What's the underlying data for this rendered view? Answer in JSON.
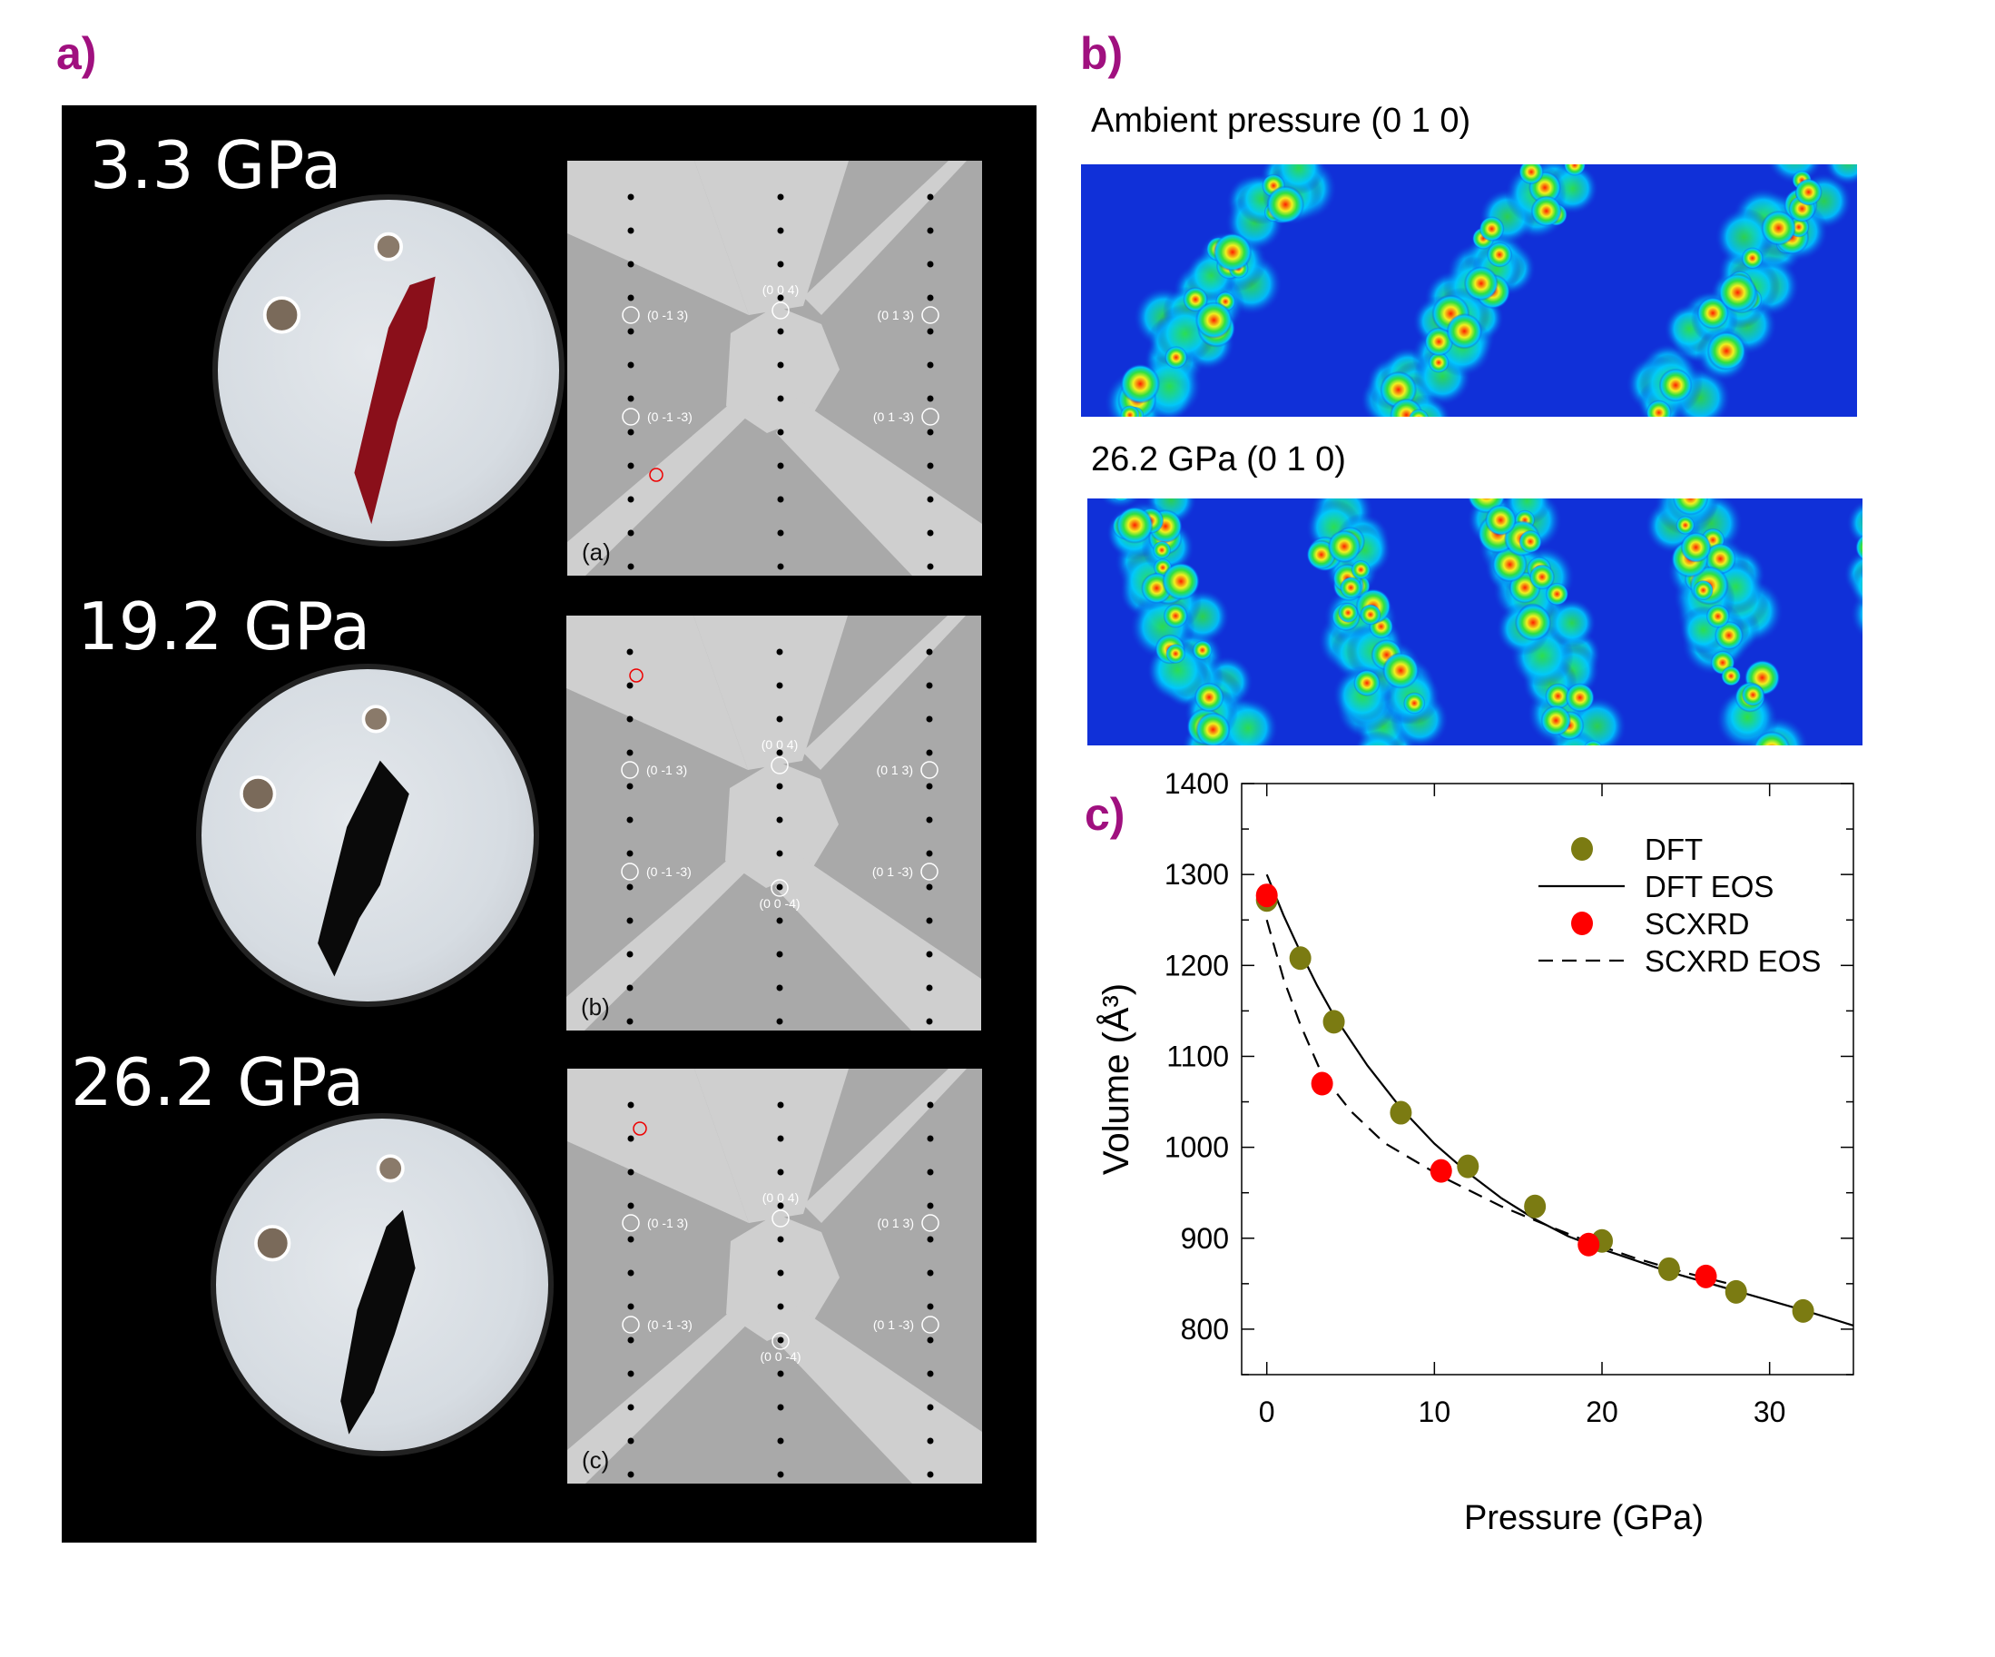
{
  "panels": {
    "a": {
      "label": "a)",
      "rows": [
        {
          "pressure": "3.3 GPa",
          "diffraction_label": "(a)",
          "reflections": [
            "(0 0 4)",
            "(0 -1 3)",
            "(0 1 3)",
            "(0 -1 -3)",
            "(0 1 -3)"
          ],
          "crystal_color": "#8a0f1a"
        },
        {
          "pressure": "19.2 GPa",
          "diffraction_label": "(b)",
          "reflections": [
            "(0 0 4)",
            "(0 -1 3)",
            "(0 1 3)",
            "(0 -1 -3)",
            "(0 1 -3)",
            "(0 0 -4)"
          ],
          "crystal_color": "#0a0a0a"
        },
        {
          "pressure": "26.2 GPa",
          "diffraction_label": "(c)",
          "reflections": [
            "(0 0 4)",
            "(0 -1 3)",
            "(0 1 3)",
            "(0 -1 -3)",
            "(0 1 -3)",
            "(0 0 -4)"
          ],
          "crystal_color": "#0a0a0a"
        }
      ]
    },
    "b": {
      "label": "b)",
      "maps": [
        {
          "title": "Ambient pressure (0 1 0)"
        },
        {
          "title": "26.2 GPa (0 1 0)"
        }
      ],
      "colormap": [
        "#1030d8",
        "#00c8ff",
        "#30e040",
        "#f0f020",
        "#ff2000"
      ]
    },
    "c": {
      "label": "c)"
    }
  },
  "chart_data": {
    "type": "scatter",
    "xlabel": "Pressure (GPa)",
    "ylabel": "Volume (Å³)",
    "xlim": [
      -1.5,
      35
    ],
    "ylim": [
      750,
      1400
    ],
    "xticks": [
      0,
      10,
      20,
      30
    ],
    "yticks": [
      800,
      900,
      1000,
      1100,
      1200,
      1300,
      1400
    ],
    "legend_position": "top-right",
    "series": [
      {
        "name": "DFT",
        "kind": "points",
        "color": "#7b7b12",
        "x": [
          0,
          2,
          4,
          8,
          12,
          16,
          20,
          24,
          28,
          32
        ],
        "y": [
          1272,
          1208,
          1138,
          1038,
          979,
          935,
          897,
          866,
          841,
          820
        ]
      },
      {
        "name": "DFT EOS",
        "kind": "solid-line",
        "color": "#000000",
        "x": [
          0,
          1,
          2,
          3,
          4,
          6,
          8,
          10,
          12,
          14,
          16,
          18,
          20,
          24,
          28,
          32,
          35
        ],
        "y": [
          1300,
          1255,
          1215,
          1178,
          1145,
          1090,
          1043,
          1004,
          972,
          944,
          921,
          902,
          888,
          863,
          842,
          821,
          804
        ]
      },
      {
        "name": "SCXRD",
        "kind": "points",
        "color": "#ff0000",
        "x": [
          0,
          3.3,
          10.4,
          19.2,
          26.2
        ],
        "y": [
          1277,
          1070,
          974,
          893,
          858
        ]
      },
      {
        "name": "SCXRD EOS",
        "kind": "dashed-line",
        "color": "#000000",
        "x": [
          0,
          1,
          2,
          3.3,
          5,
          7,
          10.4,
          14,
          17,
          19.2,
          22,
          25,
          28
        ],
        "y": [
          1250,
          1185,
          1135,
          1080,
          1040,
          1005,
          968,
          935,
          912,
          896,
          878,
          862,
          848
        ]
      }
    ]
  }
}
